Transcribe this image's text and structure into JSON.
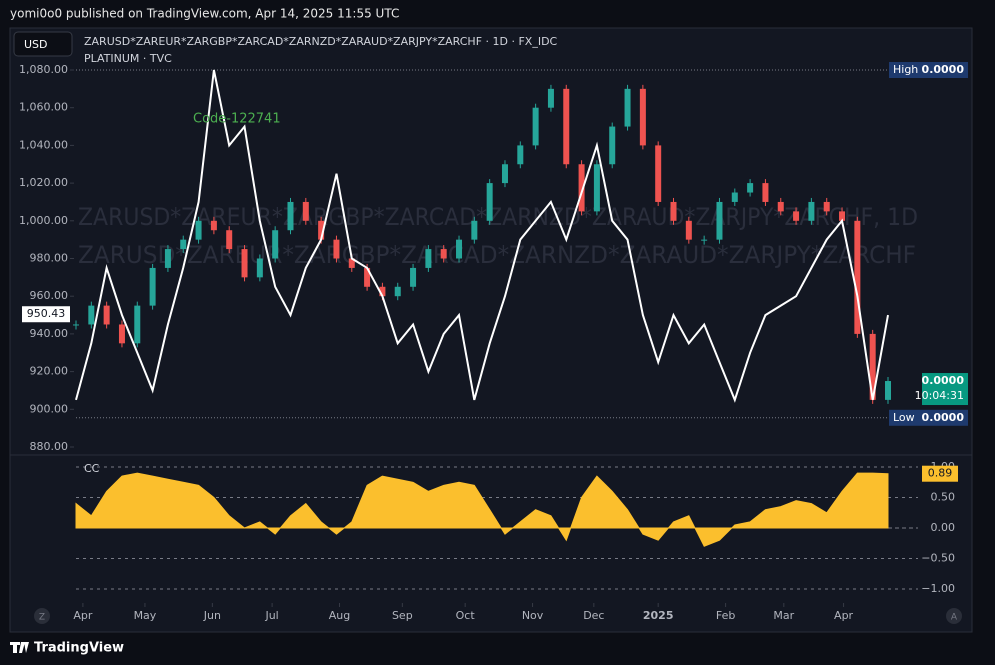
{
  "header": {
    "title": "yomi0o0 published on TradingView.com, Apr 14, 2025 11:55 UTC",
    "currency": "USD",
    "footer": "TradingView",
    "left_button": "Z",
    "right_button": "A"
  },
  "chart_data": [
    {
      "type": "line",
      "watermark": [
        "ZARUSD*ZAREUR*ZARGBP*ZARCAD*ZARNZD*ZARAUD*ZARJPY*ZARCHF, 1D",
        "ZARUSD*ZAREUR*ZARGBP*ZARCAD*ZARNZD*ZARAUD*ZARJPY*ZARCHF"
      ],
      "annotation": "Code-122741",
      "xlim": [
        0,
        53
      ],
      "ylim": [
        880,
        1080
      ],
      "yticks": [
        {
          "value": 880,
          "label": "880.00"
        },
        {
          "value": 900,
          "label": "900.00"
        },
        {
          "value": 920,
          "label": "920.00"
        },
        {
          "value": 940,
          "label": "940.00"
        },
        {
          "value": 960,
          "label": "960.00"
        },
        {
          "value": 980,
          "label": "980.00"
        },
        {
          "value": 1000,
          "label": "1,000.00"
        },
        {
          "value": 1020,
          "label": "1,020.00"
        },
        {
          "value": 1040,
          "label": "1,040.00"
        },
        {
          "value": 1060,
          "label": "1,060.00"
        },
        {
          "value": 1080,
          "label": "1,080.00"
        }
      ],
      "crosshair": {
        "value": 950.43,
        "label": "950.43"
      },
      "high": {
        "value": 1080,
        "name": "High",
        "label": "0.0000"
      },
      "low": {
        "value": 895.5,
        "name": "Low",
        "label": "0.0000"
      },
      "last": {
        "label": "0.0000",
        "countdown": "10:04:31",
        "color": "#089981"
      },
      "series": [
        {
          "name": "ZARUSD*ZAREUR*ZARGBP*ZARCAD*ZARNZD*ZARAUD*ZARJPY*ZARCHF · 1D · FX_IDC",
          "style": "candles",
          "up_color": "#26a69a",
          "down_color": "#ef5350",
          "values": [
            945,
            955,
            945,
            935,
            955,
            975,
            985,
            990,
            1000,
            995,
            985,
            970,
            980,
            995,
            1010,
            1000,
            990,
            980,
            975,
            965,
            960,
            965,
            975,
            985,
            980,
            990,
            1000,
            1020,
            1030,
            1040,
            1060,
            1070,
            1030,
            1005,
            1030,
            1050,
            1070,
            1040,
            1010,
            1000,
            990,
            990,
            1010,
            1015,
            1020,
            1010,
            1005,
            1000,
            1010,
            1005,
            1000,
            940,
            905,
            915
          ]
        },
        {
          "name": "PLATINUM · TVC",
          "style": "line",
          "color": "#ffffff",
          "values": [
            905,
            935,
            975,
            950,
            930,
            910,
            945,
            975,
            1010,
            1080,
            1040,
            1050,
            1000,
            965,
            950,
            975,
            990,
            1025,
            980,
            975,
            960,
            935,
            945,
            920,
            940,
            950,
            905,
            935,
            960,
            990,
            1000,
            1010,
            990,
            1015,
            1040,
            1000,
            990,
            950,
            925,
            950,
            935,
            945,
            925,
            905,
            930,
            950,
            955,
            960,
            975,
            990,
            1000,
            960,
            905,
            950
          ]
        }
      ]
    },
    {
      "type": "area",
      "xlim": [
        0,
        53
      ],
      "ylim": [
        -1,
        1
      ],
      "yticks": [
        {
          "value": 1,
          "label": "1.00"
        },
        {
          "value": 0.5,
          "label": "0.50"
        },
        {
          "value": 0,
          "label": "0.00"
        },
        {
          "value": -0.5,
          "label": "−0.50"
        },
        {
          "value": -1,
          "label": "−1.00"
        }
      ],
      "xticks": [
        {
          "value": 0.45,
          "label": "Apr"
        },
        {
          "value": 4.5,
          "label": "May"
        },
        {
          "value": 8.9,
          "label": "Jun"
        },
        {
          "value": 12.8,
          "label": "Jul"
        },
        {
          "value": 17.2,
          "label": "Aug"
        },
        {
          "value": 21.3,
          "label": "Sep"
        },
        {
          "value": 25.4,
          "label": "Oct"
        },
        {
          "value": 29.8,
          "label": "Nov"
        },
        {
          "value": 33.8,
          "label": "Dec"
        },
        {
          "value": 38,
          "label": "2025"
        },
        {
          "value": 42.4,
          "label": "Feb"
        },
        {
          "value": 46.2,
          "label": "Mar"
        },
        {
          "value": 50.1,
          "label": "Apr"
        }
      ],
      "series": [
        {
          "name": "CC",
          "color": "#fbbf2d",
          "values": [
            0.4,
            0.2,
            0.6,
            0.85,
            0.9,
            0.85,
            0.8,
            0.75,
            0.7,
            0.5,
            0.2,
            0,
            0.1,
            -0.1,
            0.2,
            0.4,
            0.1,
            -0.1,
            0.1,
            0.7,
            0.85,
            0.8,
            0.75,
            0.6,
            0.7,
            0.75,
            0.7,
            0.3,
            -0.1,
            0.1,
            0.3,
            0.2,
            -0.2,
            0.5,
            0.85,
            0.6,
            0.3,
            -0.1,
            -0.2,
            0.1,
            0.2,
            -0.3,
            -0.2,
            0.05,
            0.1,
            0.3,
            0.35,
            0.45,
            0.4,
            0.25,
            0.6,
            0.9,
            0.9,
            0.89
          ],
          "value_label": "0.89"
        }
      ]
    }
  ]
}
